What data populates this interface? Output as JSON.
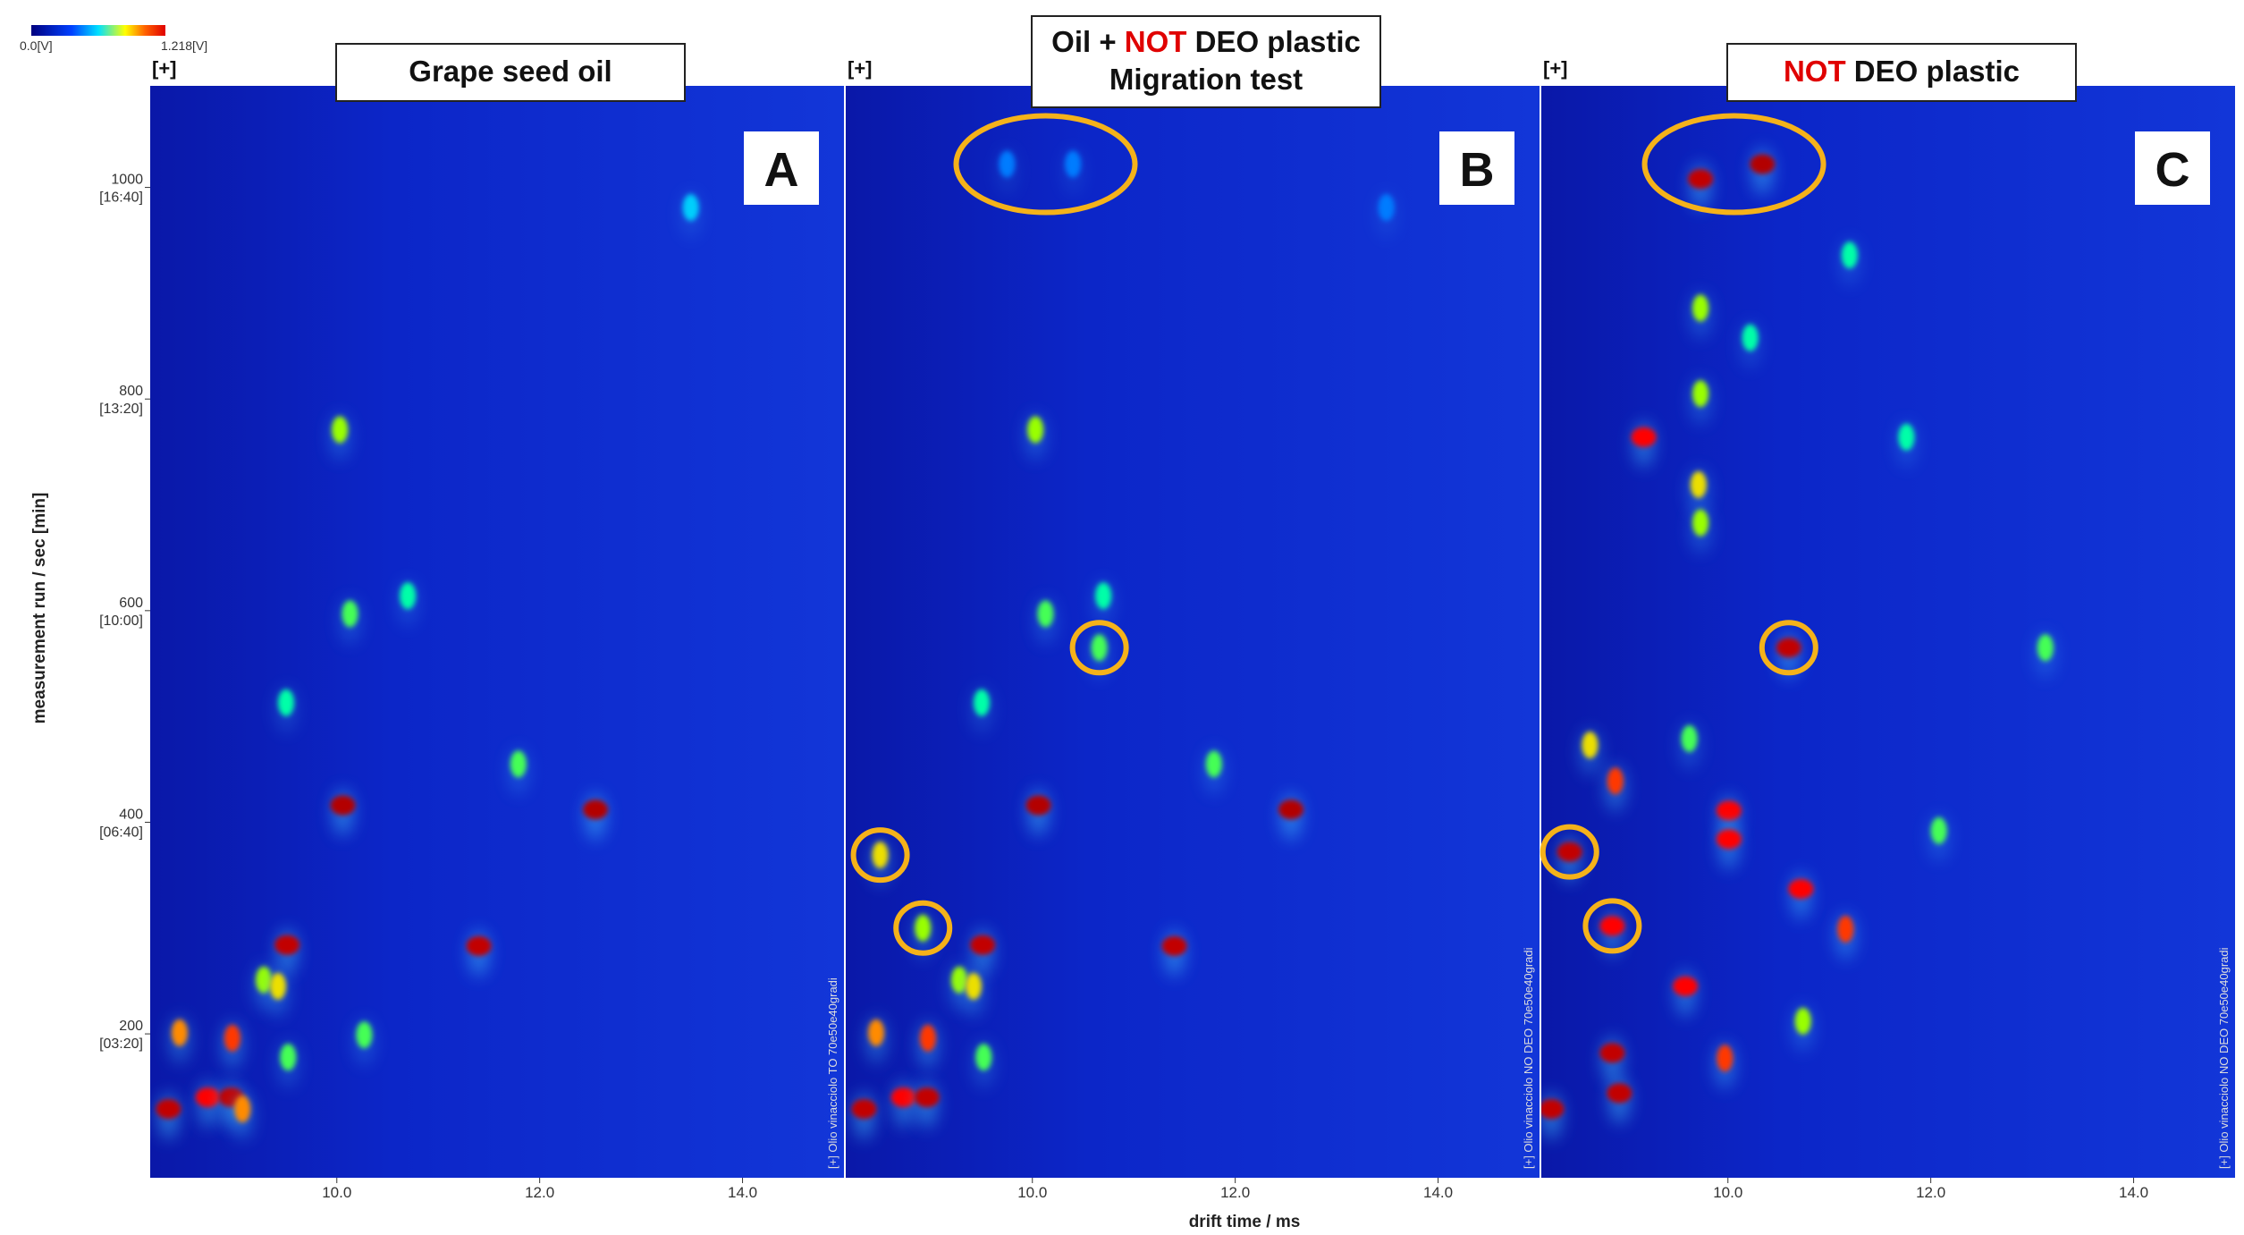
{
  "colorbar": {
    "labels": [
      "0.0[V]",
      "1.218[V]"
    ],
    "range": [
      0,
      1.218
    ]
  },
  "chart_data": [
    {
      "type": "heatmap",
      "panel": "[+]",
      "title": [
        {
          "text": "Grape seed oil"
        }
      ],
      "letter": "A",
      "side_text": "[+] Olio vinacciolo TO 70e50e40gradi",
      "y_label": "measurement run / sec [min]",
      "xlim": [
        8.16,
        15.0
      ],
      "ylim": [
        64,
        1096
      ],
      "xticks": [
        {
          "value": 10,
          "label": "10.0"
        },
        {
          "value": 12,
          "label": "12.0"
        },
        {
          "value": 14,
          "label": "14.0"
        }
      ],
      "yticks": [
        {
          "value": 1000,
          "label": "1000",
          "time": "[16:40]"
        },
        {
          "value": 800,
          "label": "800",
          "time": "[13:20]"
        },
        {
          "value": 600,
          "label": "600",
          "time": "[10:00]"
        },
        {
          "value": 400,
          "label": "400",
          "time": "[06:40]"
        },
        {
          "value": 200,
          "label": "200",
          "time": "[03:20]"
        }
      ],
      "vertical_streaks": [
        8.26,
        9.49,
        10.06,
        11.81,
        13.49
      ],
      "horizontal_streaks": [
        414,
        286
      ],
      "spots": {
        "x": [
          10.03,
          10.13,
          10.7,
          9.5,
          10.06,
          12.55,
          11.79,
          13.49,
          9.51,
          11.4,
          8.45,
          8.97,
          9.28,
          9.42,
          9.52,
          8.34,
          8.73,
          8.96,
          9.07,
          10.27
        ],
        "y": [
          771,
          597,
          614,
          513,
          416,
          412,
          455,
          981,
          284,
          283,
          201,
          196,
          251,
          245,
          178,
          129,
          140,
          140,
          129,
          199
        ],
        "v": [
          0.7,
          0.6,
          0.5,
          0.5,
          1.218,
          1.218,
          0.6,
          0.4,
          1.2,
          1.2,
          0.9,
          1.0,
          0.7,
          0.8,
          0.6,
          1.2,
          1.1,
          1.2,
          0.9,
          0.6
        ]
      },
      "highlights": {
        "x": [],
        "y": []
      }
    },
    {
      "type": "heatmap",
      "panel": "[+]",
      "title": [
        {
          "text": "Oil + "
        },
        {
          "text": "NOT",
          "color": "#e00000"
        },
        {
          "text": " DEO plastic"
        }
      ],
      "subtitle": "Migration test",
      "letter": "B",
      "side_text": "[+] Olio vinacciolo NO DEO 70e50e40gradi",
      "x_label": "drift time / ms",
      "xlim": [
        8.16,
        15.0
      ],
      "ylim": [
        64,
        1096
      ],
      "xticks": [
        {
          "value": 10,
          "label": "10.0"
        },
        {
          "value": 12,
          "label": "12.0"
        },
        {
          "value": 14,
          "label": "14.0"
        }
      ],
      "vertical_streaks": [
        8.26,
        9.49,
        10.06,
        11.81,
        13.49
      ],
      "horizontal_streaks": [
        414,
        286
      ],
      "spots": {
        "x": [
          10.03,
          10.13,
          10.7,
          9.5,
          10.06,
          12.55,
          11.79,
          13.49,
          9.51,
          11.4,
          8.46,
          8.97,
          9.28,
          9.42,
          9.52,
          8.34,
          8.73,
          8.96,
          8.5,
          8.92,
          10.66,
          9.75,
          10.4
        ],
        "y": [
          771,
          597,
          614,
          513,
          416,
          412,
          455,
          981,
          284,
          283,
          201,
          196,
          251,
          245,
          178,
          129,
          140,
          140,
          369,
          300,
          565,
          1022,
          1022
        ],
        "v": [
          0.7,
          0.6,
          0.5,
          0.5,
          1.218,
          1.218,
          0.6,
          0.3,
          1.2,
          1.2,
          0.9,
          1.0,
          0.7,
          0.8,
          0.6,
          1.2,
          1.1,
          1.2,
          0.8,
          0.7,
          0.6,
          0.3,
          0.3
        ]
      },
      "highlights": {
        "x": [
          10.13,
          10.66,
          8.5,
          8.92
        ],
        "y": [
          1022,
          565,
          369,
          300
        ]
      }
    },
    {
      "type": "heatmap",
      "panel": "[+]",
      "title": [
        {
          "text": "NOT",
          "color": "#e00000"
        },
        {
          "text": " DEO plastic"
        }
      ],
      "letter": "C",
      "side_text": "[+] Olio vinacciolo NO DEO 70e50e40gradi",
      "xlim": [
        8.16,
        15.0
      ],
      "ylim": [
        64,
        1096
      ],
      "xticks": [
        {
          "value": 10,
          "label": "10.0"
        },
        {
          "value": 12,
          "label": "12.0"
        },
        {
          "value": 14,
          "label": "14.0"
        }
      ],
      "vertical_streaks": [
        8.26,
        8.45,
        9.73,
        10.01,
        10.6
      ],
      "horizontal_streaks": [
        400,
        380
      ],
      "spots": {
        "x": [
          9.73,
          10.34,
          9.17,
          10.6,
          8.44,
          8.86,
          10.72,
          10.01,
          10.01,
          8.86,
          8.93,
          9.58,
          9.97,
          8.26,
          11.16,
          8.89,
          9.73,
          9.73,
          9.71,
          9.73,
          10.22,
          11.2,
          11.76,
          13.13,
          12.08,
          9.62,
          8.64,
          10.74
        ],
        "y": [
          1008,
          1022,
          764,
          565,
          372,
          302,
          337,
          411,
          384,
          182,
          144,
          245,
          177,
          129,
          299,
          439,
          886,
          805,
          719,
          683,
          858,
          936,
          764,
          565,
          392,
          479,
          473,
          212
        ],
        "v": [
          1.2,
          1.218,
          1.1,
          1.2,
          1.2,
          1.1,
          1.1,
          1.1,
          1.1,
          1.2,
          1.2,
          1.1,
          1.0,
          1.2,
          1.0,
          1.0,
          0.7,
          0.7,
          0.8,
          0.7,
          0.5,
          0.5,
          0.5,
          0.6,
          0.6,
          0.6,
          0.8,
          0.7
        ]
      },
      "highlights": {
        "x": [
          10.06,
          10.6,
          8.44,
          8.86
        ],
        "y": [
          1022,
          565,
          372,
          302
        ]
      }
    }
  ]
}
